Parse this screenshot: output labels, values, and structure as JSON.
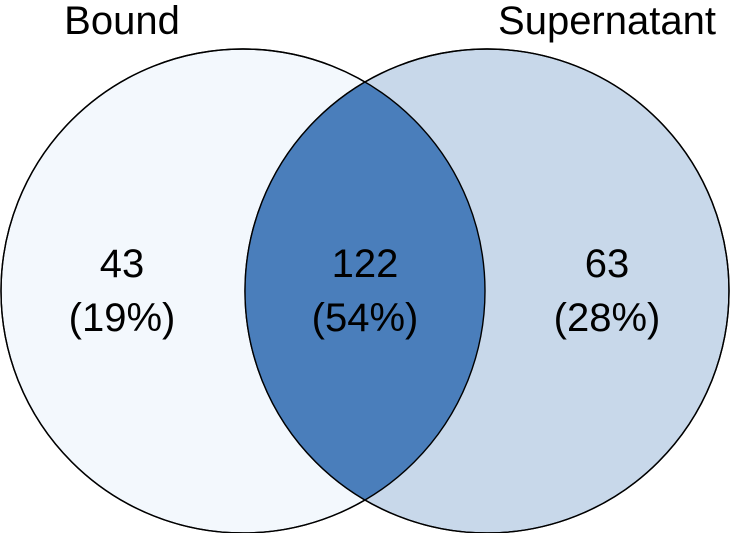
{
  "chart_data": {
    "type": "venn",
    "sets": [
      {
        "name": "Bound",
        "color": "#f3f8fd"
      },
      {
        "name": "Supernatant",
        "color": "#c8d8ea"
      }
    ],
    "regions": [
      {
        "sets": [
          "Bound"
        ],
        "count": "43",
        "percent": "(19%)"
      },
      {
        "sets": [
          "Bound",
          "Supernatant"
        ],
        "count": "122",
        "percent": "(54%)",
        "color": "#4a7ebb"
      },
      {
        "sets": [
          "Supernatant"
        ],
        "count": "63",
        "percent": "(28%)"
      }
    ]
  }
}
